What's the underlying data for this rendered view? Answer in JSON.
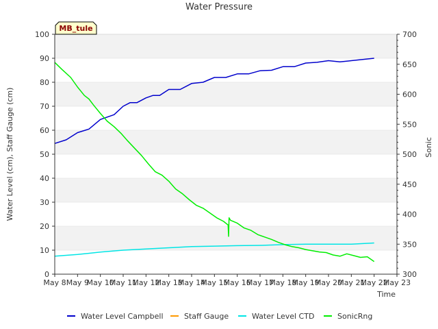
{
  "chart_data": {
    "type": "line",
    "title": "Water Pressure",
    "xlabel": "Time",
    "ylabel_left": "Water Level (cm), Staff Gauge (cm)",
    "ylabel_right": "Sonic",
    "badge": "MB_tule",
    "x_ticks": [
      "May 8",
      "May 9",
      "May 10",
      "May 11",
      "May 12",
      "May 13",
      "May 14",
      "May 15",
      "May 16",
      "May 17",
      "May 18",
      "May 19",
      "May 20",
      "May 21",
      "May 22",
      "May 23"
    ],
    "xlim": [
      8,
      23
    ],
    "ylim_left": [
      0,
      100
    ],
    "ylim_right": [
      300,
      700
    ],
    "yticks_left": [
      "0",
      "10",
      "20",
      "30",
      "40",
      "50",
      "60",
      "70",
      "80",
      "90",
      "100"
    ],
    "yticks_right": [
      "300",
      "350",
      "400",
      "450",
      "500",
      "550",
      "600",
      "650",
      "700"
    ],
    "legend_position": "bottom",
    "grid": "horizontal banded",
    "colors": {
      "campbell": "#0000cc",
      "staff": "#ff9900",
      "ctd": "#00e5e5",
      "sonic": "#00ee00",
      "band": "#f2f2f2",
      "badge_bg": "#ffffcc"
    },
    "series": [
      {
        "name": "Water Level Campbell",
        "axis": "left",
        "color_key": "campbell",
        "x": [
          8.0,
          8.5,
          9.0,
          9.5,
          10.0,
          10.3,
          10.6,
          11.0,
          11.3,
          11.6,
          12.0,
          12.3,
          12.6,
          13.0,
          13.5,
          14.0,
          14.5,
          15.0,
          15.5,
          16.0,
          16.5,
          17.0,
          17.5,
          18.0,
          18.5,
          19.0,
          19.5,
          20.0,
          20.5,
          21.0,
          21.5,
          22.0
        ],
        "y": [
          54.5,
          56.0,
          59.0,
          60.5,
          64.5,
          65.5,
          66.5,
          70.0,
          71.5,
          71.5,
          73.5,
          74.5,
          74.5,
          77.0,
          77.0,
          79.5,
          80.0,
          82.0,
          82.0,
          83.5,
          83.5,
          84.8,
          85.0,
          86.5,
          86.5,
          88.0,
          88.3,
          89.0,
          88.5,
          89.0,
          89.5,
          90.0
        ]
      },
      {
        "name": "Staff Gauge",
        "axis": "left",
        "color_key": "staff",
        "x": [],
        "y": []
      },
      {
        "name": "Water Level CTD",
        "axis": "left",
        "color_key": "ctd",
        "x": [
          8.0,
          9.0,
          10.0,
          11.0,
          12.0,
          13.0,
          14.0,
          15.0,
          16.0,
          17.0,
          18.0,
          19.0,
          20.0,
          21.0,
          22.0
        ],
        "y": [
          7.5,
          8.2,
          9.2,
          10.0,
          10.5,
          11.0,
          11.5,
          11.7,
          11.9,
          12.0,
          12.3,
          12.5,
          12.5,
          12.5,
          13.0
        ]
      },
      {
        "name": "SonicRng",
        "axis": "right",
        "color_key": "sonic",
        "x": [
          8.0,
          8.3,
          8.7,
          9.0,
          9.3,
          9.5,
          9.7,
          10.0,
          10.3,
          10.6,
          10.9,
          11.2,
          11.5,
          11.8,
          12.1,
          12.4,
          12.7,
          13.0,
          13.3,
          13.6,
          13.9,
          14.2,
          14.5,
          14.8,
          15.1,
          15.4,
          15.6,
          15.62,
          15.64,
          15.7,
          16.0,
          16.3,
          16.6,
          16.9,
          17.2,
          17.5,
          17.8,
          18.1,
          18.4,
          18.7,
          19.0,
          19.3,
          19.6,
          19.9,
          20.2,
          20.5,
          20.8,
          21.1,
          21.4,
          21.7,
          22.0
        ],
        "y": [
          653,
          642,
          628,
          612,
          598,
          592,
          582,
          568,
          555,
          546,
          535,
          522,
          510,
          498,
          484,
          471,
          465,
          455,
          442,
          434,
          424,
          415,
          410,
          402,
          394,
          388,
          382,
          363,
          394,
          390,
          385,
          377,
          373,
          366,
          362,
          358,
          353,
          349,
          346,
          344,
          341,
          339,
          337,
          336,
          332,
          330,
          334,
          331,
          328,
          329,
          321
        ]
      }
    ]
  }
}
